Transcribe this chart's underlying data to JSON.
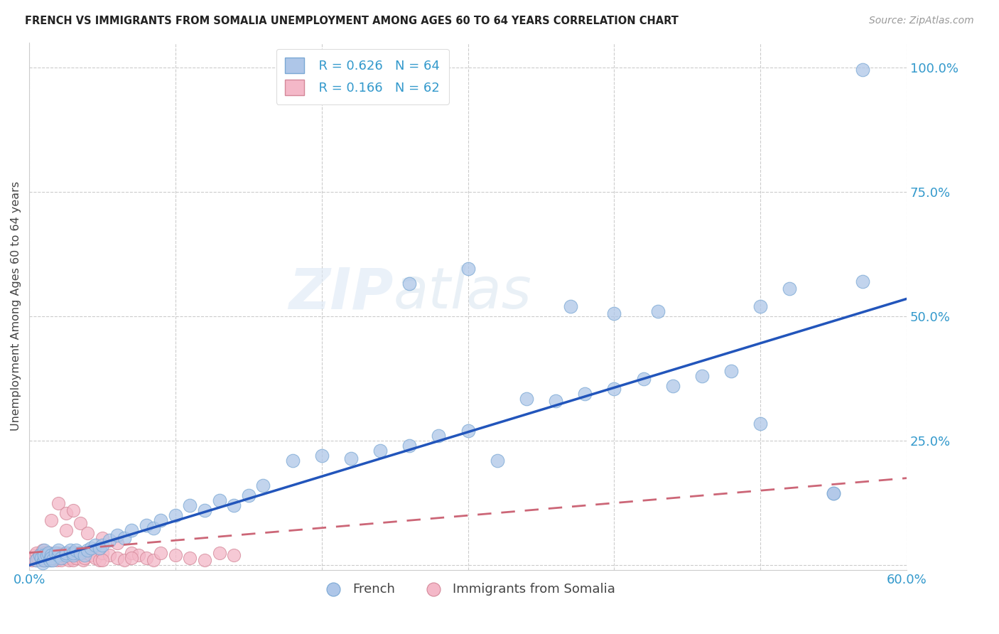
{
  "title": "FRENCH VS IMMIGRANTS FROM SOMALIA UNEMPLOYMENT AMONG AGES 60 TO 64 YEARS CORRELATION CHART",
  "source": "Source: ZipAtlas.com",
  "ylabel": "Unemployment Among Ages 60 to 64 years",
  "xlim": [
    0.0,
    0.6
  ],
  "ylim": [
    -0.01,
    1.05
  ],
  "xticks": [
    0.0,
    0.1,
    0.2,
    0.3,
    0.4,
    0.5,
    0.6
  ],
  "xticklabels": [
    "0.0%",
    "",
    "",
    "",
    "",
    "",
    "60.0%"
  ],
  "yticks": [
    0.0,
    0.25,
    0.5,
    0.75,
    1.0
  ],
  "yticklabels": [
    "",
    "25.0%",
    "50.0%",
    "75.0%",
    "100.0%"
  ],
  "grid_color": "#cccccc",
  "background_color": "#ffffff",
  "french_color": "#aec6e8",
  "french_edge_color": "#7aa8d4",
  "somalia_color": "#f4b8c8",
  "somalia_edge_color": "#d48899",
  "french_line_color": "#2255bb",
  "somalia_line_color": "#cc6677",
  "R_french": 0.626,
  "N_french": 64,
  "R_somalia": 0.166,
  "N_somalia": 62,
  "watermark": "ZIPatlas",
  "french_line_x0": 0.0,
  "french_line_y0": 0.0,
  "french_line_x1": 0.6,
  "french_line_y1": 0.535,
  "somalia_line_x0": 0.0,
  "somalia_line_y0": 0.025,
  "somalia_line_x1": 0.6,
  "somalia_line_y1": 0.175,
  "french_x": [
    0.005,
    0.007,
    0.008,
    0.009,
    0.01,
    0.01,
    0.01,
    0.012,
    0.013,
    0.014,
    0.015,
    0.015,
    0.016,
    0.018,
    0.02,
    0.02,
    0.022,
    0.025,
    0.025,
    0.028,
    0.03,
    0.03,
    0.032,
    0.035,
    0.038,
    0.04,
    0.042,
    0.045,
    0.048,
    0.05,
    0.055,
    0.06,
    0.065,
    0.07,
    0.08,
    0.085,
    0.09,
    0.1,
    0.11,
    0.12,
    0.13,
    0.14,
    0.15,
    0.16,
    0.18,
    0.2,
    0.22,
    0.24,
    0.26,
    0.28,
    0.3,
    0.32,
    0.34,
    0.36,
    0.38,
    0.4,
    0.42,
    0.44,
    0.46,
    0.48,
    0.5,
    0.52,
    0.55,
    0.57
  ],
  "french_y": [
    0.01,
    0.02,
    0.015,
    0.005,
    0.03,
    0.01,
    0.02,
    0.02,
    0.025,
    0.01,
    0.02,
    0.015,
    0.01,
    0.025,
    0.02,
    0.03,
    0.015,
    0.02,
    0.025,
    0.03,
    0.02,
    0.025,
    0.03,
    0.025,
    0.02,
    0.03,
    0.035,
    0.04,
    0.035,
    0.04,
    0.05,
    0.06,
    0.055,
    0.07,
    0.08,
    0.075,
    0.09,
    0.1,
    0.12,
    0.11,
    0.13,
    0.12,
    0.14,
    0.16,
    0.21,
    0.22,
    0.215,
    0.23,
    0.24,
    0.26,
    0.27,
    0.21,
    0.335,
    0.33,
    0.345,
    0.355,
    0.375,
    0.36,
    0.38,
    0.39,
    0.52,
    0.555,
    0.145,
    0.57
  ],
  "french_extras_x": [
    0.26,
    0.3,
    0.37,
    0.4,
    0.43,
    0.5,
    0.55,
    0.57
  ],
  "french_extras_y": [
    0.565,
    0.595,
    0.52,
    0.505,
    0.51,
    0.285,
    0.145,
    0.995
  ],
  "somalia_x": [
    0.002,
    0.003,
    0.004,
    0.005,
    0.005,
    0.006,
    0.007,
    0.008,
    0.009,
    0.01,
    0.01,
    0.01,
    0.011,
    0.012,
    0.013,
    0.014,
    0.015,
    0.015,
    0.016,
    0.017,
    0.018,
    0.019,
    0.02,
    0.02,
    0.021,
    0.022,
    0.023,
    0.024,
    0.025,
    0.025,
    0.026,
    0.027,
    0.028,
    0.029,
    0.03,
    0.03,
    0.031,
    0.032,
    0.033,
    0.035,
    0.037,
    0.038,
    0.04,
    0.042,
    0.045,
    0.048,
    0.05,
    0.055,
    0.06,
    0.065,
    0.07,
    0.075,
    0.08,
    0.085,
    0.09,
    0.1,
    0.11,
    0.12,
    0.13,
    0.14,
    0.07,
    0.05
  ],
  "somalia_y": [
    0.01,
    0.015,
    0.02,
    0.01,
    0.025,
    0.015,
    0.02,
    0.01,
    0.03,
    0.02,
    0.015,
    0.025,
    0.01,
    0.02,
    0.015,
    0.025,
    0.02,
    0.01,
    0.015,
    0.02,
    0.025,
    0.01,
    0.015,
    0.025,
    0.02,
    0.01,
    0.015,
    0.025,
    0.02,
    0.015,
    0.025,
    0.01,
    0.02,
    0.015,
    0.01,
    0.025,
    0.02,
    0.015,
    0.025,
    0.02,
    0.01,
    0.015,
    0.025,
    0.02,
    0.015,
    0.01,
    0.025,
    0.02,
    0.015,
    0.01,
    0.025,
    0.02,
    0.015,
    0.01,
    0.025,
    0.02,
    0.015,
    0.01,
    0.025,
    0.02,
    0.015,
    0.01
  ],
  "somalia_extras_x": [
    0.02,
    0.025,
    0.015,
    0.03,
    0.035,
    0.025,
    0.04,
    0.05,
    0.06
  ],
  "somalia_extras_y": [
    0.125,
    0.105,
    0.09,
    0.11,
    0.085,
    0.07,
    0.065,
    0.055,
    0.045
  ]
}
